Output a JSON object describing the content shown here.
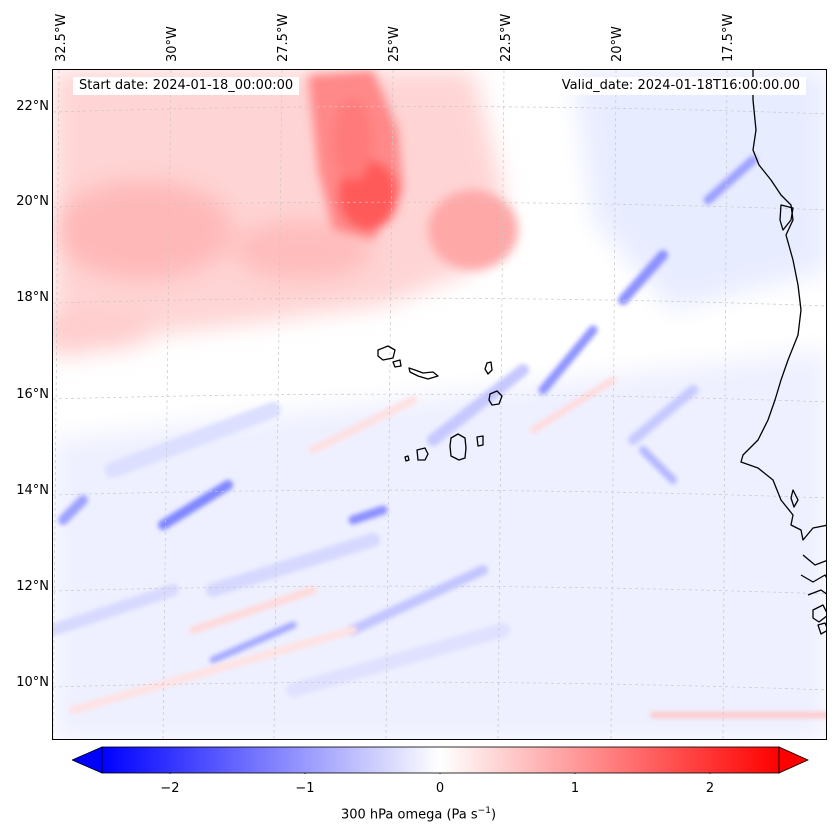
{
  "map": {
    "start_date": "Start date: 2024-01-18_00:00:00",
    "valid_date": "Valid_date: 2024-01-18T16:00:00.00",
    "lon_labels": [
      "32.5°W",
      "30°W",
      "27.5°W",
      "25°W",
      "22.5°W",
      "20°W",
      "17.5°W"
    ],
    "lat_labels": [
      "22°N",
      "20°N",
      "18°N",
      "16°N",
      "14°N",
      "12°N",
      "10°N"
    ],
    "field": "300 hPa omega",
    "colormap": "bwr",
    "colors": {
      "negative": "#0000ff",
      "zero": "#ffffff",
      "positive": "#ff0000",
      "coast": "#000000",
      "grid": "#bbbbbb"
    }
  },
  "colorbar": {
    "ticks": [
      "−2",
      "−1",
      "0",
      "1",
      "2"
    ],
    "tick_values": [
      -2,
      -1,
      0,
      1,
      2
    ],
    "range": [
      -2.6,
      2.6
    ],
    "label_main": "300 hPa omega (Pa s",
    "label_sup": "−1",
    "label_end": ")",
    "extend": "both"
  }
}
